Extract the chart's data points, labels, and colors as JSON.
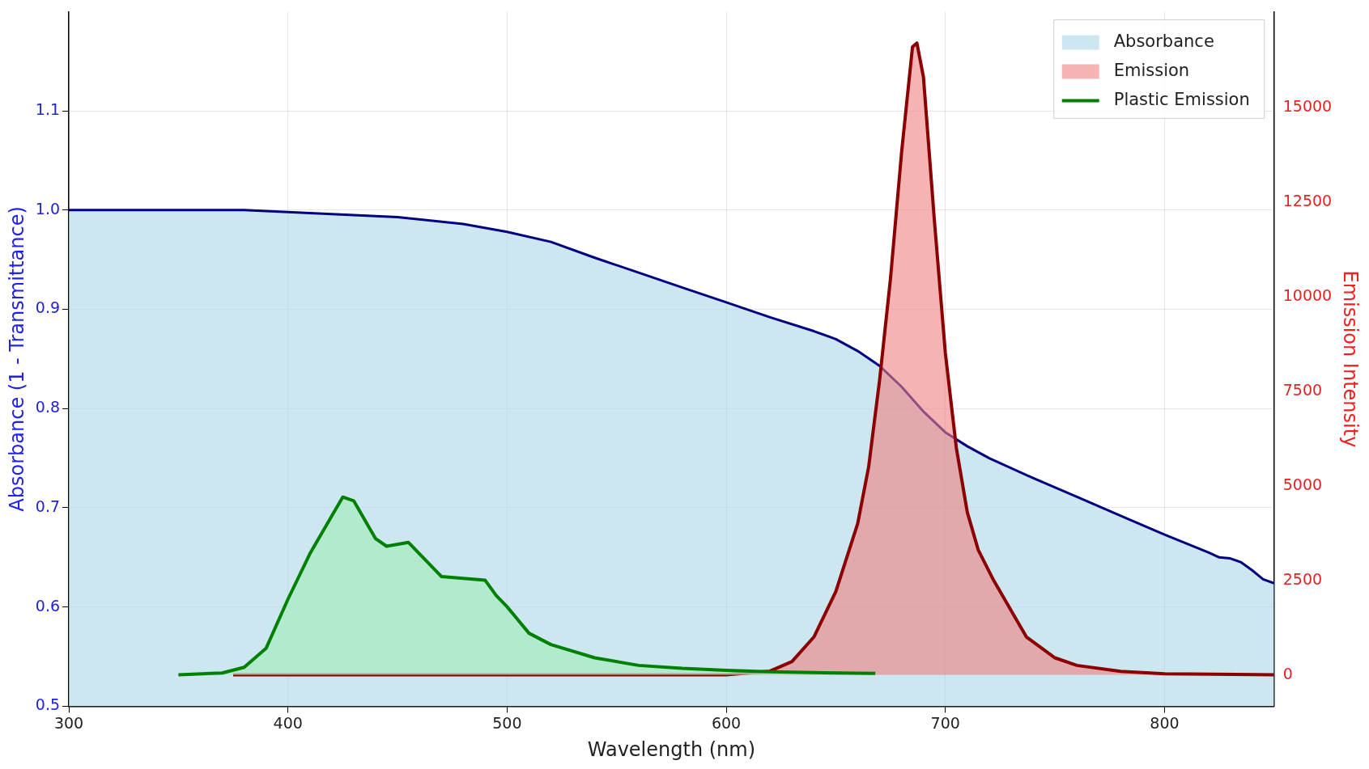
{
  "chart_data": {
    "type": "area",
    "xlabel": "Wavelength (nm)",
    "ylabel": "Absorbance (1 - Transmittance)",
    "y2label": "Emission Intensity",
    "xlim": [
      300,
      850
    ],
    "xticks": [
      300,
      400,
      500,
      600,
      700,
      800
    ],
    "ylim": [
      0.5,
      1.2
    ],
    "yticks": [
      0.5,
      0.6,
      0.7,
      0.8,
      0.9,
      {
        "value": 1,
        "label": "1.0"
      },
      1.1
    ],
    "y2lim": [
      -830,
      17530
    ],
    "y2ticks": [
      0,
      2500,
      5000,
      7500,
      10000,
      12500,
      15000
    ],
    "grid": true,
    "legend": "top right",
    "series": [
      {
        "name": "Absorbance",
        "color": "#000080",
        "x": [
          300,
          380,
          400,
          450,
          480,
          500,
          520,
          540,
          560,
          580,
          600,
          620,
          640,
          650,
          660,
          670,
          680,
          690,
          700,
          710,
          720,
          740,
          760,
          780,
          800,
          820,
          825,
          830,
          835,
          840,
          845,
          850
        ],
        "values": [
          1.0,
          1.0,
          0.998,
          0.993,
          0.986,
          0.978,
          0.968,
          0.952,
          0.937,
          0.922,
          0.907,
          0.892,
          0.878,
          0.87,
          0.858,
          0.843,
          0.822,
          0.797,
          0.776,
          0.762,
          0.75,
          0.73,
          0.711,
          0.692,
          0.673,
          0.655,
          0.65,
          0.649,
          0.645,
          0.637,
          0.628,
          0.624
        ]
      },
      {
        "name": "Emission",
        "color": "#8b0000",
        "axis": "y2",
        "x": [
          375,
          600,
          620,
          630,
          640,
          650,
          660,
          665,
          670,
          675,
          680,
          685,
          687,
          690,
          695,
          700,
          705,
          710,
          715,
          722,
          730,
          737,
          750,
          760,
          780,
          800,
          850
        ],
        "values": [
          0,
          0,
          100,
          350,
          1000,
          2200,
          4000,
          5500,
          7800,
          10500,
          13800,
          16600,
          16700,
          15800,
          12000,
          8500,
          6000,
          4300,
          3300,
          2500,
          1700,
          1000,
          450,
          250,
          90,
          30,
          0
        ]
      },
      {
        "name": "Plastic Emission",
        "color": "#008000",
        "axis": "y2",
        "x": [
          350,
          370,
          380,
          390,
          400,
          410,
          420,
          425,
          430,
          440,
          445,
          455,
          460,
          470,
          480,
          490,
          495,
          500,
          510,
          520,
          540,
          560,
          580,
          600,
          620,
          640,
          668
        ],
        "values": [
          0,
          50,
          200,
          700,
          2000,
          3200,
          4200,
          4700,
          4600,
          3600,
          3400,
          3500,
          3200,
          2600,
          2550,
          2500,
          2100,
          1800,
          1100,
          800,
          450,
          250,
          170,
          120,
          80,
          60,
          40
        ]
      }
    ]
  }
}
